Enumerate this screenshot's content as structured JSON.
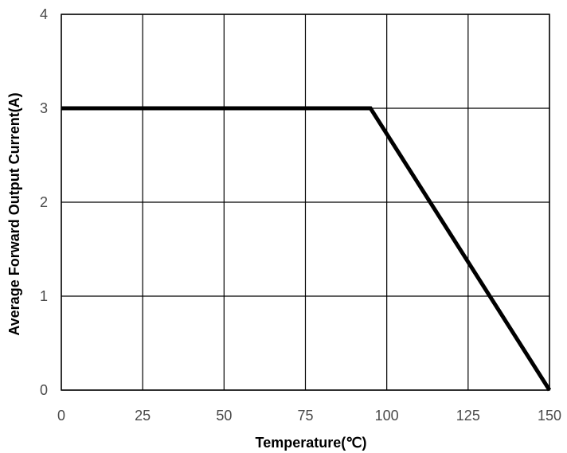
{
  "chart_data": {
    "type": "line",
    "title": "",
    "xlabel": "Temperature(℃)",
    "ylabel": "Average Forward Output Current(A)",
    "xlim": [
      0,
      150
    ],
    "ylim": [
      0,
      4
    ],
    "xticks": [
      0,
      25,
      50,
      75,
      100,
      125,
      150
    ],
    "yticks": [
      0,
      1,
      2,
      3,
      4
    ],
    "xtick_labels": [
      "0",
      "25",
      "50",
      "75",
      "100",
      "125",
      "150"
    ],
    "ytick_labels": [
      "0",
      "1",
      "2",
      "3",
      "4"
    ],
    "grid": true,
    "legend": "none",
    "series": [
      {
        "x": [
          0,
          95,
          150
        ],
        "y": [
          3,
          3,
          0
        ]
      }
    ],
    "colors": {
      "line": "#000000",
      "grid": "#000000",
      "tick_text": "#4a4a4a",
      "background": "#ffffff"
    }
  }
}
